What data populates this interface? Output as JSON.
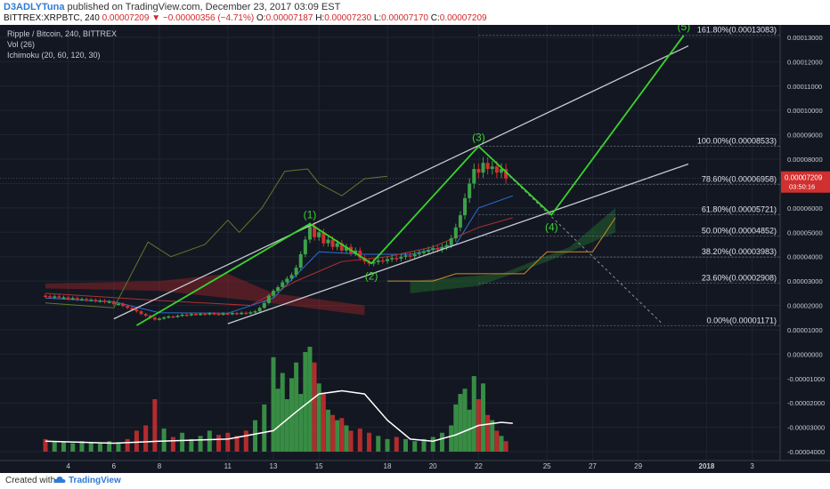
{
  "header": {
    "author": "D3ADLYTuna",
    "published_text": "published on TradingView.com, December 23, 2017 03:09 EST",
    "symbol_line": "BITTREX:XRPBTC, 240",
    "last_price": "0.00007209",
    "change_text": "−0.00000356 (−4.71%)",
    "change_arrow": "▼",
    "o_label": "O:",
    "o_value": "0.00007187",
    "h_label": "H:",
    "h_value": "0.00007230",
    "l_label": "L:",
    "l_value": "0.00007170",
    "c_label": "C:",
    "c_value": "0.00007209"
  },
  "legend": {
    "title": "Ripple / Bitcoin, 240, BITTREX",
    "vol": "Vol (26)",
    "ichimoku": "Ichimoku (20, 60, 120, 30)"
  },
  "footer": {
    "created_with": "Created with",
    "brand": "TradingView"
  },
  "colors": {
    "background": "#131722",
    "wave": "#39d42b",
    "channel": "#c9cbd2",
    "up": "#3fa14a",
    "down": "#d0302f",
    "fib_text": "#e0e3ea",
    "axis_text": "#c8cbd4"
  },
  "chart_data": {
    "type": "candlestick",
    "price_axis": [
      "0.00013000",
      "0.00012000",
      "0.00011000",
      "0.00010000",
      "0.00009000",
      "0.00008000",
      "0.00007000",
      "0.00006000",
      "0.00005000",
      "0.00004000",
      "0.00003000",
      "0.00002000",
      "0.00001000",
      "0.00000000",
      "-0.00001000",
      "-0.00002000",
      "-0.00003000",
      "-0.00004000"
    ],
    "price_axis_values": [
      0.00013,
      0.00012,
      0.00011,
      0.0001,
      9e-05,
      8e-05,
      7e-05,
      6e-05,
      5e-05,
      4e-05,
      3e-05,
      2e-05,
      1e-05,
      0,
      -1e-05,
      -2e-05,
      -3e-05,
      -4e-05
    ],
    "x_ticks": [
      "4",
      "6",
      "8",
      "11",
      "13",
      "15",
      "18",
      "20",
      "22",
      "25",
      "27",
      "29",
      "2018",
      "3"
    ],
    "x_tick_days": [
      4,
      6,
      8,
      11,
      13,
      15,
      18,
      20,
      22,
      25,
      27,
      29,
      32,
      34
    ],
    "last_price_label": "0.00007209",
    "countdown_label": "03:50:16",
    "fib_levels": [
      {
        "label": "161.80%(0.00013083)",
        "value": 0.00013083
      },
      {
        "label": "100.00%(0.00008533)",
        "value": 8.533e-05
      },
      {
        "label": "78.60%(0.00006958)",
        "value": 6.958e-05
      },
      {
        "label": "61.80%(0.00005721)",
        "value": 5.721e-05
      },
      {
        "label": "50.00%(0.00004852)",
        "value": 4.852e-05
      },
      {
        "label": "38.20%(0.00003983)",
        "value": 3.983e-05
      },
      {
        "label": "23.60%(0.00002908)",
        "value": 2.908e-05
      },
      {
        "label": "0.00%(0.00001171)",
        "value": 1.171e-05
      }
    ],
    "wave_points": [
      {
        "label": "",
        "day": 7.0,
        "price": 1.18e-05
      },
      {
        "label": "(1)",
        "day": 14.6,
        "price": 5.35e-05
      },
      {
        "label": "(2)",
        "day": 17.3,
        "price": 3.72e-05
      },
      {
        "label": "(3)",
        "day": 22.0,
        "price": 8.53e-05
      },
      {
        "label": "(4)",
        "day": 25.2,
        "price": 5.72e-05
      },
      {
        "label": "(5)",
        "day": 31.0,
        "price": 0.0001308
      }
    ],
    "channel_lines": [
      {
        "name": "upper",
        "d1": 6.0,
        "p1": 1.45e-05,
        "d2": 31.2,
        "p2": 0.0001265
      },
      {
        "name": "lower",
        "d1": 11.0,
        "p1": 1.25e-05,
        "d2": 31.2,
        "p2": 7.8e-05
      }
    ],
    "projection": {
      "d1": 22.0,
      "p1": 8.53e-05,
      "d2": 30.0,
      "p2": 1.3e-05
    },
    "candles": [
      [
        3.0,
        2.4e-05,
        2.38e-05
      ],
      [
        3.2,
        2.38e-05,
        2.35e-05
      ],
      [
        3.4,
        2.35e-05,
        2.37e-05
      ],
      [
        3.6,
        2.37e-05,
        2.32e-05
      ],
      [
        3.8,
        2.32e-05,
        2.33e-05
      ],
      [
        4.0,
        2.33e-05,
        2.28e-05
      ],
      [
        4.2,
        2.28e-05,
        2.3e-05
      ],
      [
        4.4,
        2.3e-05,
        2.25e-05
      ],
      [
        4.6,
        2.25e-05,
        2.26e-05
      ],
      [
        4.8,
        2.26e-05,
        2.22e-05
      ],
      [
        5.0,
        2.22e-05,
        2.23e-05
      ],
      [
        5.2,
        2.23e-05,
        2.18e-05
      ],
      [
        5.4,
        2.18e-05,
        2.2e-05
      ],
      [
        5.6,
        2.2e-05,
        2.14e-05
      ],
      [
        5.8,
        2.14e-05,
        2.16e-05
      ],
      [
        6.0,
        2.16e-05,
        2.05e-05
      ],
      [
        6.2,
        2.05e-05,
        2.07e-05
      ],
      [
        6.4,
        2.07e-05,
        1.98e-05
      ],
      [
        6.6,
        1.98e-05,
        1.9e-05
      ],
      [
        6.8,
        1.9e-05,
        1.83e-05
      ],
      [
        7.0,
        1.83e-05,
        1.76e-05
      ],
      [
        7.2,
        1.76e-05,
        1.65e-05
      ],
      [
        7.4,
        1.65e-05,
        1.58e-05
      ],
      [
        7.6,
        1.58e-05,
        1.5e-05
      ],
      [
        7.8,
        1.5e-05,
        1.42e-05
      ],
      [
        8.0,
        1.42e-05,
        1.46e-05
      ],
      [
        8.2,
        1.46e-05,
        1.51e-05
      ],
      [
        8.4,
        1.51e-05,
        1.55e-05
      ],
      [
        8.6,
        1.55e-05,
        1.53e-05
      ],
      [
        8.8,
        1.53e-05,
        1.58e-05
      ],
      [
        9.0,
        1.58e-05,
        1.62e-05
      ],
      [
        9.2,
        1.62e-05,
        1.6e-05
      ],
      [
        9.4,
        1.6e-05,
        1.65e-05
      ],
      [
        9.6,
        1.65e-05,
        1.63e-05
      ],
      [
        9.8,
        1.63e-05,
        1.66e-05
      ],
      [
        10.0,
        1.66e-05,
        1.64e-05
      ],
      [
        10.2,
        1.64e-05,
        1.68e-05
      ],
      [
        10.4,
        1.68e-05,
        1.66e-05
      ],
      [
        10.6,
        1.66e-05,
        1.63e-05
      ],
      [
        10.8,
        1.63e-05,
        1.67e-05
      ],
      [
        11.0,
        1.67e-05,
        1.65e-05
      ],
      [
        11.2,
        1.65e-05,
        1.69e-05
      ],
      [
        11.4,
        1.69e-05,
        1.66e-05
      ],
      [
        11.6,
        1.66e-05,
        1.7e-05
      ],
      [
        11.8,
        1.7e-05,
        1.68e-05
      ],
      [
        12.0,
        1.68e-05,
        1.72e-05
      ],
      [
        12.2,
        1.72e-05,
        1.76e-05
      ],
      [
        12.4,
        1.76e-05,
        1.9e-05
      ],
      [
        12.6,
        1.9e-05,
        2.1e-05
      ],
      [
        12.8,
        2.1e-05,
        2.4e-05
      ],
      [
        13.0,
        2.4e-05,
        2.6e-05
      ],
      [
        13.2,
        2.6e-05,
        2.75e-05
      ],
      [
        13.4,
        2.75e-05,
        2.95e-05
      ],
      [
        13.6,
        2.95e-05,
        3.1e-05
      ],
      [
        13.8,
        3.1e-05,
        3.25e-05
      ],
      [
        14.0,
        3.25e-05,
        3.55e-05
      ],
      [
        14.2,
        3.55e-05,
        4.1e-05
      ],
      [
        14.4,
        4.1e-05,
        4.7e-05
      ],
      [
        14.6,
        4.7e-05,
        5.25e-05
      ],
      [
        14.8,
        5.25e-05,
        4.8e-05
      ],
      [
        15.0,
        4.8e-05,
        5e-05
      ],
      [
        15.2,
        5e-05,
        4.55e-05
      ],
      [
        15.4,
        4.55e-05,
        4.7e-05
      ],
      [
        15.6,
        4.7e-05,
        4.4e-05
      ],
      [
        15.8,
        4.4e-05,
        4.55e-05
      ],
      [
        16.0,
        4.55e-05,
        4.25e-05
      ],
      [
        16.2,
        4.25e-05,
        4.4e-05
      ],
      [
        16.4,
        4.4e-05,
        4.15e-05
      ],
      [
        16.6,
        4.15e-05,
        4.25e-05
      ],
      [
        16.8,
        4.25e-05,
        3.95e-05
      ],
      [
        17.0,
        3.95e-05,
        3.8e-05
      ],
      [
        17.2,
        3.8e-05,
        3.72e-05
      ],
      [
        17.4,
        3.72e-05,
        3.78e-05
      ],
      [
        17.6,
        3.78e-05,
        3.85e-05
      ],
      [
        17.8,
        3.85e-05,
        3.82e-05
      ],
      [
        18.0,
        3.82e-05,
        3.9e-05
      ],
      [
        18.2,
        3.9e-05,
        3.95e-05
      ],
      [
        18.4,
        3.95e-05,
        3.92e-05
      ],
      [
        18.6,
        3.92e-05,
        4e-05
      ],
      [
        18.8,
        4e-05,
        4.05e-05
      ],
      [
        19.0,
        4.05e-05,
        4.02e-05
      ],
      [
        19.2,
        4.02e-05,
        4.1e-05
      ],
      [
        19.4,
        4.1e-05,
        4.15e-05
      ],
      [
        19.6,
        4.15e-05,
        4.2e-05
      ],
      [
        19.8,
        4.2e-05,
        4.28e-05
      ],
      [
        20.0,
        4.28e-05,
        4.35e-05
      ],
      [
        20.2,
        4.35e-05,
        4.3e-05
      ],
      [
        20.4,
        4.3e-05,
        4.4e-05
      ],
      [
        20.6,
        4.4e-05,
        4.48e-05
      ],
      [
        20.8,
        4.48e-05,
        4.75e-05
      ],
      [
        21.0,
        4.75e-05,
        5.2e-05
      ],
      [
        21.2,
        5.2e-05,
        5.7e-05
      ],
      [
        21.4,
        5.7e-05,
        6.4e-05
      ],
      [
        21.6,
        6.4e-05,
        7e-05
      ],
      [
        21.8,
        7e-05,
        7.6e-05
      ],
      [
        22.0,
        7.6e-05,
        7.45e-05
      ],
      [
        22.2,
        7.45e-05,
        7.85e-05
      ],
      [
        22.4,
        7.85e-05,
        7.6e-05
      ],
      [
        22.6,
        7.6e-05,
        7.7e-05
      ],
      [
        22.8,
        7.7e-05,
        7.45e-05
      ],
      [
        23.0,
        7.45e-05,
        7.6e-05
      ],
      [
        23.2,
        7.6e-05,
        7.21e-05
      ]
    ],
    "volume_axis": "negative price scale overlay",
    "volumes": [
      [
        3.0,
        0.12
      ],
      [
        3.4,
        0.1
      ],
      [
        3.8,
        0.09
      ],
      [
        4.2,
        0.08
      ],
      [
        4.6,
        0.1
      ],
      [
        5.0,
        0.09
      ],
      [
        5.4,
        0.08
      ],
      [
        5.8,
        0.1
      ],
      [
        6.2,
        0.09
      ],
      [
        6.6,
        0.12
      ],
      [
        7.0,
        0.2
      ],
      [
        7.4,
        0.25
      ],
      [
        7.8,
        0.5
      ],
      [
        8.2,
        0.22
      ],
      [
        8.6,
        0.14
      ],
      [
        9.0,
        0.18
      ],
      [
        9.4,
        0.12
      ],
      [
        9.8,
        0.15
      ],
      [
        10.2,
        0.2
      ],
      [
        10.6,
        0.16
      ],
      [
        11.0,
        0.18
      ],
      [
        11.4,
        0.15
      ],
      [
        11.8,
        0.2
      ],
      [
        12.2,
        0.3
      ],
      [
        12.6,
        0.45
      ],
      [
        13.0,
        0.9
      ],
      [
        13.2,
        0.6
      ],
      [
        13.4,
        0.75
      ],
      [
        13.6,
        0.5
      ],
      [
        13.8,
        0.7
      ],
      [
        14.0,
        0.85
      ],
      [
        14.2,
        0.55
      ],
      [
        14.4,
        0.95
      ],
      [
        14.6,
        1.0
      ],
      [
        14.8,
        0.85
      ],
      [
        15.0,
        0.65
      ],
      [
        15.2,
        0.55
      ],
      [
        15.4,
        0.4
      ],
      [
        15.6,
        0.35
      ],
      [
        15.8,
        0.3
      ],
      [
        16.0,
        0.32
      ],
      [
        16.2,
        0.25
      ],
      [
        16.4,
        0.2
      ],
      [
        16.8,
        0.22
      ],
      [
        17.2,
        0.18
      ],
      [
        17.6,
        0.15
      ],
      [
        18.0,
        0.12
      ],
      [
        18.4,
        0.14
      ],
      [
        18.8,
        0.12
      ],
      [
        19.2,
        0.1
      ],
      [
        19.6,
        0.12
      ],
      [
        20.0,
        0.14
      ],
      [
        20.4,
        0.18
      ],
      [
        20.8,
        0.25
      ],
      [
        21.0,
        0.45
      ],
      [
        21.2,
        0.55
      ],
      [
        21.4,
        0.6
      ],
      [
        21.6,
        0.4
      ],
      [
        21.8,
        0.72
      ],
      [
        22.0,
        0.5
      ],
      [
        22.2,
        0.65
      ],
      [
        22.4,
        0.35
      ],
      [
        22.6,
        0.3
      ],
      [
        22.8,
        0.2
      ],
      [
        23.0,
        0.15
      ],
      [
        23.2,
        0.1
      ]
    ]
  }
}
